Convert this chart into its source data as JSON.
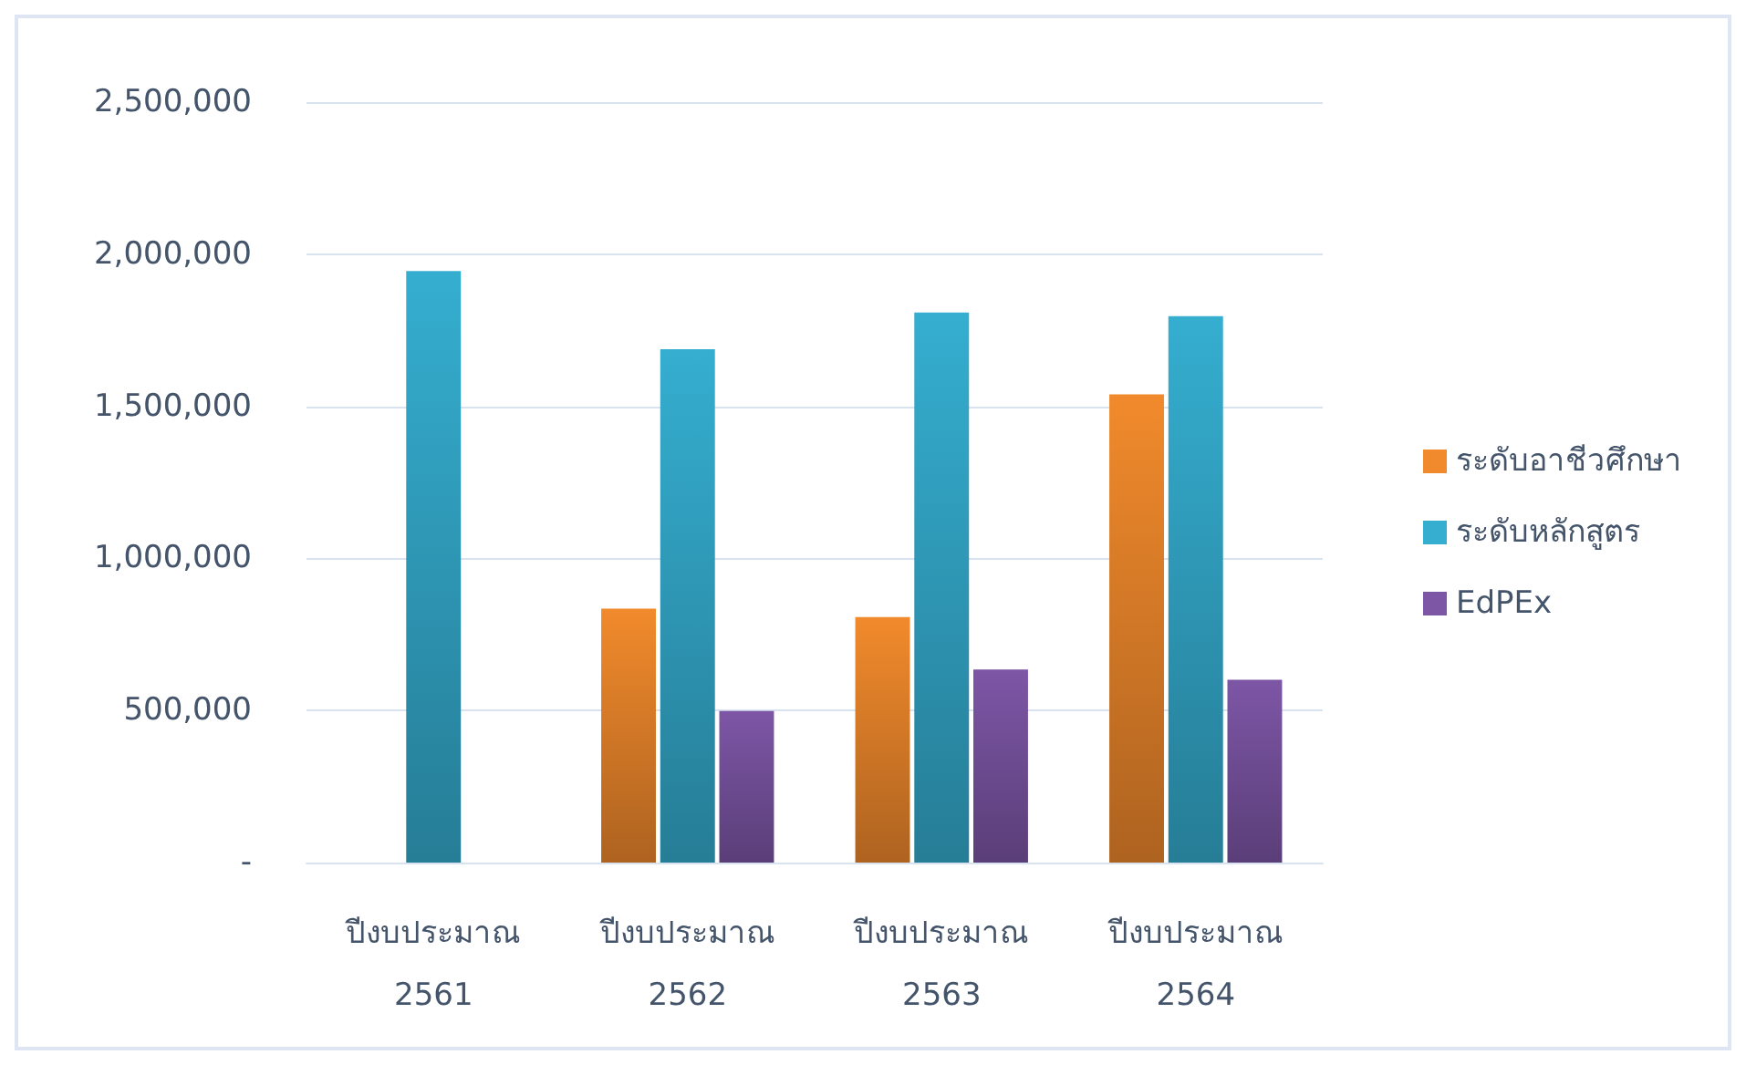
{
  "chart_data": {
    "type": "bar",
    "categories": [
      "ปีงบประมาณ\n2561",
      "ปีงบประมาณ\n2562",
      "ปีงบประมาณ\n2563",
      "ปีงบประมาณ\n2564"
    ],
    "series": [
      {
        "name": "ระดับอาชีวศึกษา",
        "color": "#f18a2c",
        "values": [
          null,
          835000,
          807000,
          1539000
        ]
      },
      {
        "name": "ระดับหลักสูตร",
        "color": "#35aed0",
        "values": [
          1945000,
          1688000,
          1808000,
          1796000
        ]
      },
      {
        "name": "EdPEx",
        "color": "#7d56a6",
        "values": [
          null,
          498000,
          635000,
          601000
        ]
      }
    ],
    "ylim": [
      0,
      2500000
    ],
    "yticks": [
      {
        "value": 0,
        "label": "-"
      },
      {
        "value": 500000,
        "label": "500,000"
      },
      {
        "value": 1000000,
        "label": "1,000,000"
      },
      {
        "value": 1500000,
        "label": "1,500,000"
      },
      {
        "value": 2000000,
        "label": "2,000,000"
      },
      {
        "value": 2500000,
        "label": "2,500,000"
      }
    ],
    "grid": "y",
    "legend": "right"
  }
}
